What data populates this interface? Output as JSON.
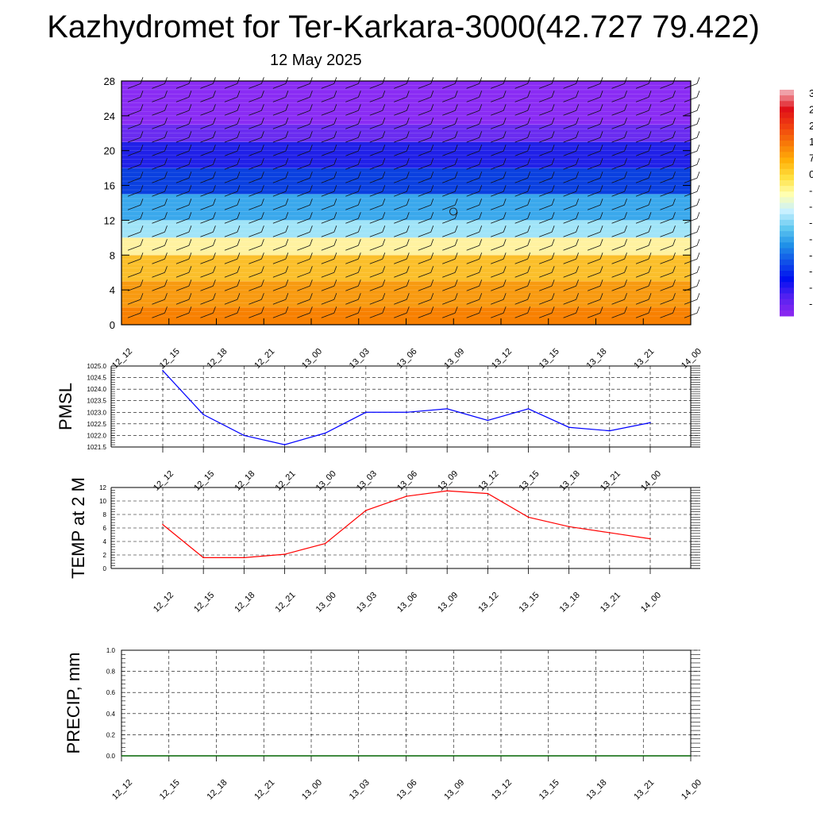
{
  "header": {
    "title": "Kazhydromet for Ter-Karkara-3000(42.727 79.422)",
    "date": "12 May 2025"
  },
  "colorbar": {
    "labels": [
      "3",
      "2",
      "2",
      "1",
      "7",
      "0",
      "-",
      "-",
      "-",
      "-",
      "-",
      "-",
      "-",
      "-"
    ],
    "colors": [
      "#f0a0a8",
      "#e01018",
      "#f04010",
      "#f87808",
      "#ffb008",
      "#ffe040",
      "#ffffb0",
      "#c8f0ff",
      "#60c8f0",
      "#2090e8",
      "#1050e8",
      "#0010f0",
      "#5020f0",
      "#8828f0"
    ]
  },
  "chart_data": [
    {
      "type": "heatmap",
      "title": "",
      "ylim": [
        0,
        28
      ],
      "yticks": [
        "0",
        "4",
        "8",
        "12",
        "16",
        "20",
        "24",
        "28"
      ],
      "x": [
        "12_12",
        "12_15",
        "12_18",
        "12_21",
        "13_00",
        "13_03",
        "13_06",
        "13_09",
        "13_12",
        "13_15",
        "13_18",
        "13_21",
        "14_00"
      ],
      "bands": [
        {
          "from": 0,
          "to": 2,
          "color": "#f88000"
        },
        {
          "from": 2,
          "to": 5,
          "color": "#f89a10"
        },
        {
          "from": 5,
          "to": 8,
          "color": "#fbbf2a"
        },
        {
          "from": 8,
          "to": 10,
          "color": "#fff2a0"
        },
        {
          "from": 10,
          "to": 12,
          "color": "#a0e4f8"
        },
        {
          "from": 12,
          "to": 15,
          "color": "#3aa8ec"
        },
        {
          "from": 15,
          "to": 18,
          "color": "#0a40e0"
        },
        {
          "from": 18,
          "to": 21,
          "color": "#2020e8"
        },
        {
          "from": 21,
          "to": 23,
          "color": "#6a2cf0"
        },
        {
          "from": 23,
          "to": 28,
          "color": "#8a2cf4"
        }
      ]
    },
    {
      "type": "line",
      "ylabel": "PMSL",
      "ylim": [
        1021.5,
        1025.0
      ],
      "yticks": [
        "1021.5",
        "1022.0",
        "1022.5",
        "1023.0",
        "1023.5",
        "1024.0",
        "1024.5",
        "1025.0"
      ],
      "x": [
        "12_12",
        "12_15",
        "12_18",
        "12_21",
        "13_00",
        "13_03",
        "13_06",
        "13_09",
        "13_12",
        "13_15",
        "13_18",
        "13_21",
        "14_00"
      ],
      "series": [
        {
          "values": [
            1024.8,
            1022.9,
            1022.0,
            1021.6,
            1022.1,
            1023.0,
            1023.0,
            1023.15,
            1022.65,
            1023.15,
            1022.35,
            1022.2,
            1022.55
          ],
          "color": "#0000ff"
        }
      ]
    },
    {
      "type": "line",
      "ylabel": "TEMP at 2 M",
      "ylim": [
        0,
        12
      ],
      "yticks": [
        "0",
        "2",
        "4",
        "6",
        "8",
        "10",
        "12"
      ],
      "x": [
        "12_12",
        "12_15",
        "12_18",
        "12_21",
        "13_00",
        "13_03",
        "13_06",
        "13_09",
        "13_12",
        "13_15",
        "13_18",
        "13_21",
        "14_00"
      ],
      "series": [
        {
          "values": [
            6.5,
            1.6,
            1.6,
            2.1,
            3.7,
            8.6,
            10.7,
            11.5,
            11.1,
            7.6,
            6.2,
            5.3,
            4.4
          ],
          "color": "#ff0000"
        }
      ]
    },
    {
      "type": "line",
      "ylabel": "PRECIP, mm",
      "ylim": [
        0,
        1.0
      ],
      "yticks": [
        "0.0",
        "0.2",
        "0.4",
        "0.6",
        "0.8",
        "1.0"
      ],
      "x": [
        "12_12",
        "12_15",
        "12_18",
        "12_21",
        "13_00",
        "13_03",
        "13_06",
        "13_09",
        "13_12",
        "13_15",
        "13_18",
        "13_21",
        "14_00"
      ],
      "series": [
        {
          "values": [
            0,
            0,
            0,
            0,
            0,
            0,
            0,
            0,
            0,
            0,
            0,
            0,
            0
          ],
          "color": "#006400"
        }
      ]
    }
  ]
}
